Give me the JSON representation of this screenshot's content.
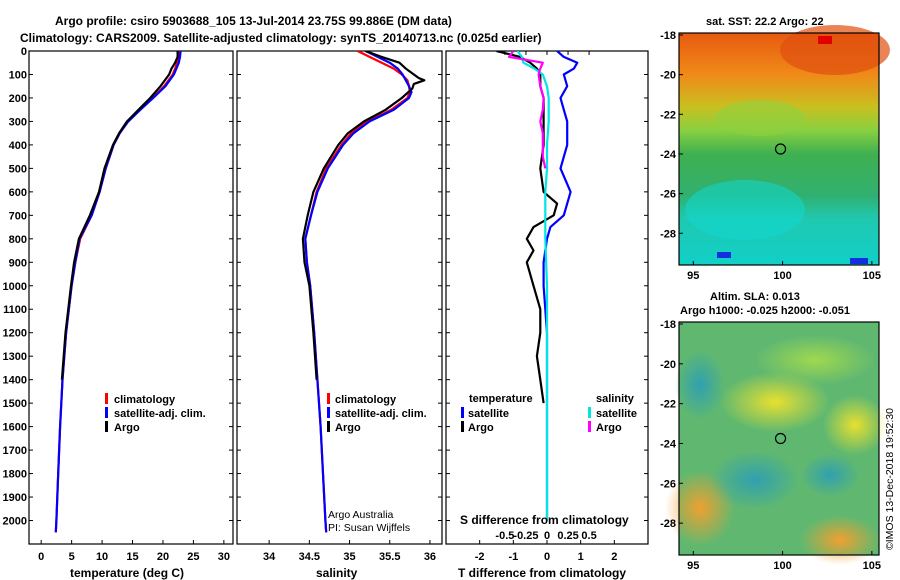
{
  "header": {
    "line1": "Argo profile: csiro 5903688_105 13-Jul-2014 23.75S 99.886E (DM data)",
    "line2": "Climatology: CARS2009. Satellite-adjusted climatology: synTS_20140713.nc (0.025d earlier)"
  },
  "colors": {
    "climatology": "#ff0000",
    "satellite_adj": "#0000ff",
    "argo": "#000000",
    "sal_satellite": "#00e5e5",
    "sal_argo": "#ff00ff"
  },
  "depth_axis": {
    "ylim": [
      0,
      2100
    ],
    "ticks": [
      0,
      100,
      200,
      300,
      400,
      500,
      600,
      700,
      800,
      900,
      1000,
      1100,
      1200,
      1300,
      1400,
      1500,
      1600,
      1700,
      1800,
      1900,
      2000
    ]
  },
  "chart_data": [
    {
      "type": "line",
      "name": "temperature",
      "xlabel": "temperature (deg C)",
      "ylabel": "",
      "xlim": [
        -2,
        31.5
      ],
      "xticks": [
        0,
        5,
        10,
        15,
        20,
        25,
        30
      ],
      "legend": [
        "climatology",
        "satellite-adj. clim.",
        "Argo"
      ],
      "series": [
        {
          "name": "climatology",
          "color": "#ff0000",
          "depth": [
            0,
            25,
            50,
            75,
            100,
            150,
            200,
            250,
            300,
            350,
            400,
            500,
            600,
            700,
            800,
            900,
            1000,
            1200,
            1400,
            1600,
            1800,
            2000,
            2050
          ],
          "values": [
            22.6,
            22.5,
            22.3,
            22.0,
            21.6,
            20.2,
            18.3,
            16.2,
            14.2,
            12.9,
            11.9,
            10.6,
            9.6,
            8.3,
            6.4,
            5.6,
            5.0,
            4.1,
            3.5,
            3.1,
            2.8,
            2.5,
            2.4
          ]
        },
        {
          "name": "satellite-adj. clim.",
          "color": "#0000ff",
          "depth": [
            0,
            25,
            50,
            75,
            100,
            150,
            200,
            250,
            300,
            350,
            400,
            500,
            600,
            700,
            800,
            900,
            1000,
            1200,
            1400,
            1600,
            1800,
            2000,
            2050
          ],
          "values": [
            22.9,
            22.8,
            22.6,
            22.2,
            21.8,
            20.4,
            18.4,
            16.3,
            14.3,
            12.9,
            11.9,
            10.6,
            9.6,
            8.3,
            6.3,
            5.6,
            5.0,
            4.1,
            3.5,
            3.1,
            2.8,
            2.5,
            2.4
          ]
        },
        {
          "name": "Argo",
          "color": "#000000",
          "depth": [
            0,
            25,
            50,
            75,
            100,
            150,
            200,
            250,
            300,
            350,
            400,
            500,
            600,
            700,
            800,
            900,
            1000,
            1200,
            1400
          ],
          "values": [
            22.4,
            22.4,
            22.0,
            21.4,
            21.0,
            19.6,
            17.9,
            16.0,
            14.1,
            12.8,
            11.8,
            10.4,
            9.5,
            8.0,
            6.2,
            5.4,
            4.9,
            4.0,
            3.4
          ]
        }
      ]
    },
    {
      "type": "line",
      "name": "salinity",
      "xlabel": "salinity",
      "ylabel": "",
      "xlim": [
        33.6,
        36.15
      ],
      "xticks": [
        34,
        34.5,
        35,
        35.5,
        36
      ],
      "legend": [
        "climatology",
        "satellite-adj. clim.",
        "Argo"
      ],
      "annotation": [
        "Argo Australia",
        "PI: Susan Wijffels"
      ],
      "series": [
        {
          "name": "climatology",
          "color": "#ff0000",
          "depth": [
            0,
            25,
            50,
            75,
            100,
            125,
            150,
            175,
            200,
            250,
            300,
            350,
            400,
            500,
            600,
            700,
            800,
            900,
            1000,
            1200,
            1400,
            1600,
            1800,
            2000,
            2050
          ],
          "values": [
            35.1,
            35.25,
            35.4,
            35.55,
            35.65,
            35.72,
            35.74,
            35.75,
            35.72,
            35.52,
            35.22,
            35.02,
            34.9,
            34.71,
            34.59,
            34.52,
            34.45,
            34.47,
            34.51,
            34.56,
            34.6,
            34.64,
            34.67,
            34.7,
            34.71
          ]
        },
        {
          "name": "satellite-adj. clim.",
          "color": "#0000ff",
          "depth": [
            0,
            25,
            50,
            75,
            100,
            125,
            150,
            175,
            200,
            250,
            300,
            350,
            400,
            500,
            600,
            700,
            800,
            900,
            1000,
            1200,
            1400,
            1600,
            1800,
            2000,
            2050
          ],
          "values": [
            35.2,
            35.35,
            35.5,
            35.6,
            35.66,
            35.7,
            35.74,
            35.77,
            35.74,
            35.55,
            35.25,
            35.05,
            34.92,
            34.73,
            34.6,
            34.52,
            34.45,
            34.47,
            34.51,
            34.56,
            34.6,
            34.64,
            34.67,
            34.7,
            34.71
          ]
        },
        {
          "name": "Argo",
          "color": "#000000",
          "depth": [
            0,
            25,
            50,
            75,
            100,
            115,
            125,
            140,
            160,
            200,
            250,
            300,
            350,
            400,
            500,
            600,
            700,
            800,
            900,
            1000,
            1200,
            1400
          ],
          "values": [
            35.2,
            35.4,
            35.62,
            35.7,
            35.8,
            35.86,
            35.93,
            35.8,
            35.78,
            35.65,
            35.45,
            35.18,
            34.98,
            34.86,
            34.68,
            34.55,
            34.48,
            34.42,
            34.44,
            34.5,
            34.55,
            34.59
          ]
        }
      ]
    },
    {
      "type": "line",
      "name": "difference",
      "xlabel": "T difference from climatology",
      "xlabel_top": "S difference from climatology",
      "ylabel": "",
      "xlim": [
        -3.0,
        3.0
      ],
      "xticks": [
        -2,
        -1,
        0,
        1,
        2
      ],
      "s_ticks": [
        -0.5,
        -0.25,
        0,
        0.25,
        0.5
      ],
      "s_tick_labels": [
        "-0.5",
        "-0.25",
        "0",
        "0.25",
        "0.5"
      ],
      "legend_left_title": "temperature",
      "legend_right_title": "salinity",
      "legend_left": [
        "satellite",
        "Argo"
      ],
      "legend_right": [
        "satellite",
        "Argo"
      ],
      "series": [
        {
          "name": "T satellite",
          "color": "#0000ff",
          "depth": [
            0,
            25,
            50,
            75,
            100,
            150,
            200,
            250,
            300,
            400,
            500,
            600,
            650,
            700,
            750,
            800,
            900,
            1000,
            1200,
            1400,
            1600,
            1800,
            2000
          ],
          "values": [
            0.3,
            0.5,
            0.9,
            0.8,
            0.5,
            0.6,
            0.4,
            0.5,
            0.6,
            0.6,
            0.4,
            0.7,
            0.6,
            0.5,
            0.1,
            0.0,
            -0.1,
            -0.1,
            0.0,
            0.0,
            0.0,
            0.0,
            0.0
          ]
        },
        {
          "name": "T Argo",
          "color": "#000000",
          "depth": [
            0,
            25,
            50,
            75,
            100,
            150,
            200,
            250,
            300,
            400,
            500,
            600,
            650,
            700,
            750,
            800,
            850,
            900,
            1000,
            1100,
            1200,
            1300,
            1400,
            1500
          ],
          "values": [
            -1.5,
            -0.8,
            -0.5,
            -0.3,
            -0.2,
            -0.2,
            -0.1,
            -0.1,
            -0.1,
            -0.1,
            -0.2,
            -0.1,
            0.3,
            0.2,
            -0.4,
            -0.6,
            -0.4,
            -0.6,
            -0.4,
            -0.2,
            -0.2,
            -0.3,
            -0.2,
            -0.1
          ]
        },
        {
          "name": "S satellite",
          "color": "#00e5e5",
          "depth": [
            0,
            25,
            50,
            75,
            100,
            150,
            200,
            300,
            400,
            500,
            600,
            800,
            1000,
            1200,
            1400,
            1600,
            1800,
            2000
          ],
          "values": [
            -0.35,
            -0.3,
            -0.28,
            -0.15,
            -0.05,
            0.0,
            0.02,
            0.02,
            0.0,
            0.0,
            -0.02,
            -0.02,
            0.0,
            0.0,
            0.0,
            0.0,
            0.0,
            0.0
          ]
        },
        {
          "name": "S Argo",
          "color": "#ff00ff",
          "depth": [
            0,
            25,
            50,
            75,
            100,
            150,
            200,
            250,
            300,
            350,
            400,
            450,
            500
          ],
          "values": [
            -0.4,
            -0.45,
            -0.05,
            -0.08,
            -0.1,
            -0.08,
            -0.04,
            -0.05,
            -0.08,
            -0.05,
            -0.05,
            -0.05,
            -0.02
          ]
        }
      ]
    }
  ],
  "maps": {
    "sst": {
      "title": "sat. SST: 22.2 Argo: 22",
      "lon_ticks": [
        95,
        100,
        105
      ],
      "lat_ticks": [
        -18,
        -20,
        -22,
        -24,
        -26,
        -28
      ]
    },
    "sla": {
      "title1": "Altim. SLA: 0.013",
      "title2": "Argo h1000: -0.025 h2000: -0.051",
      "lon_ticks": [
        95,
        100,
        105
      ],
      "lat_ticks": [
        -18,
        -20,
        -22,
        -24,
        -26,
        -28
      ]
    },
    "profile_location": {
      "lon": 99.886,
      "lat": -23.75
    },
    "lon_range": [
      94.2,
      105.4
    ],
    "lat_range": [
      -29.6,
      -17.9
    ]
  },
  "credit": "©IMOS 13-Dec-2018 19:52:30"
}
